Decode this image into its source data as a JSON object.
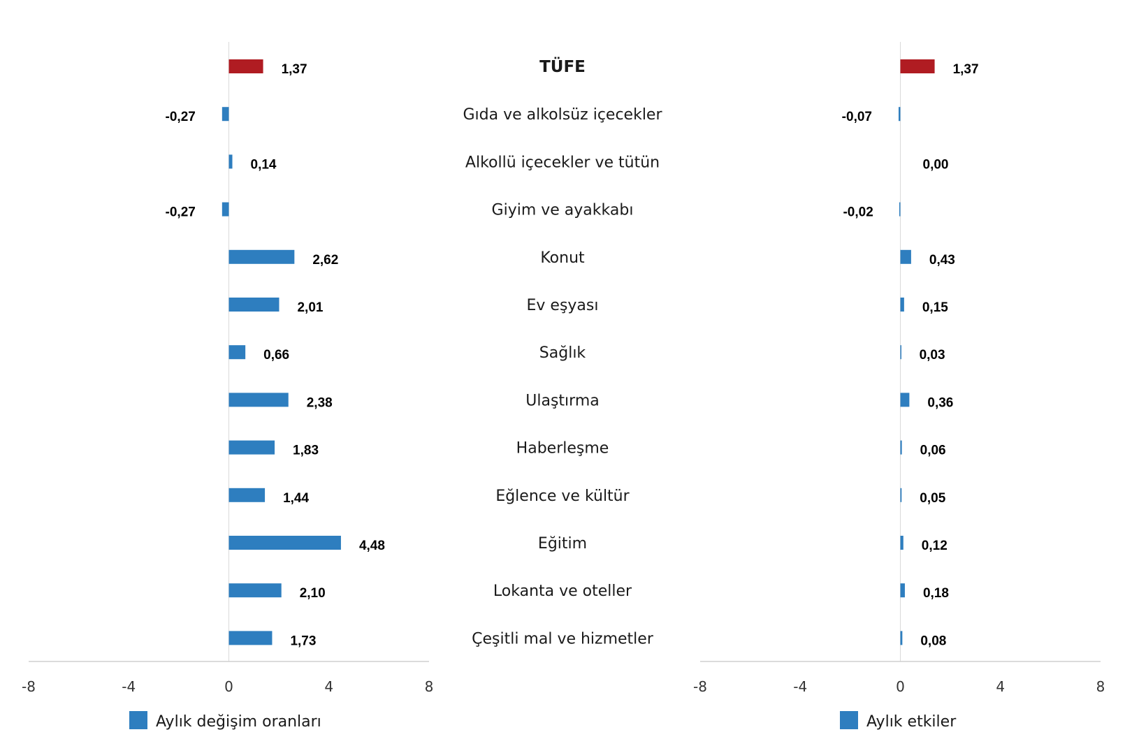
{
  "chart_data": [
    {
      "type": "bar",
      "orientation": "horizontal",
      "categories": [
        "TÜFE",
        "Gıda ve alkolsüz içecekler",
        "Alkollü içecekler ve tütün",
        "Giyim ve ayakkabı",
        "Konut",
        "Ev eşyası",
        "Sağlık",
        "Ulaştırma",
        "Haberleşme",
        "Eğlence ve kültür",
        "Eğitim",
        "Lokanta ve oteller",
        "Çeşitli mal ve hizmetler"
      ],
      "series": [
        {
          "name": "Aylık değişim oranları",
          "values": [
            1.37,
            -0.27,
            0.14,
            -0.27,
            2.62,
            2.01,
            0.66,
            2.38,
            1.83,
            1.44,
            4.48,
            2.1,
            1.73
          ],
          "labels": [
            "1,37",
            "-0,27",
            "0,14",
            "-0,27",
            "2,62",
            "2,01",
            "0,66",
            "2,38",
            "1,83",
            "1,44",
            "4,48",
            "2,10",
            "1,73"
          ]
        }
      ],
      "highlight_index": 0,
      "colors": {
        "bar": "#2e7ebf",
        "highlight": "#b01c22"
      },
      "xlim": [
        -8,
        8
      ],
      "xticks": [
        "-8",
        "-4",
        "0",
        "4",
        "8"
      ],
      "xlabel": "",
      "ylabel": "",
      "title": "",
      "legend": "bottom"
    },
    {
      "type": "bar",
      "orientation": "horizontal",
      "categories": [
        "TÜFE",
        "Gıda ve alkolsüz içecekler",
        "Alkollü içecekler ve tütün",
        "Giyim ve ayakkabı",
        "Konut",
        "Ev eşyası",
        "Sağlık",
        "Ulaştırma",
        "Haberleşme",
        "Eğlence ve kültür",
        "Eğitim",
        "Lokanta ve oteller",
        "Çeşitli mal ve hizmetler"
      ],
      "series": [
        {
          "name": "Aylık etkiler",
          "values": [
            1.37,
            -0.07,
            0.0,
            -0.02,
            0.43,
            0.15,
            0.03,
            0.36,
            0.06,
            0.05,
            0.12,
            0.18,
            0.08
          ],
          "labels": [
            "1,37",
            "-0,07",
            "0,00",
            "-0,02",
            "0,43",
            "0,15",
            "0,03",
            "0,36",
            "0,06",
            "0,05",
            "0,12",
            "0,18",
            "0,08"
          ]
        }
      ],
      "highlight_index": 0,
      "colors": {
        "bar": "#2e7ebf",
        "highlight": "#b01c22"
      },
      "xlim": [
        -8,
        8
      ],
      "xticks": [
        "-8",
        "-4",
        "0",
        "4",
        "8"
      ],
      "xlabel": "",
      "ylabel": "",
      "title": "",
      "legend": "bottom"
    }
  ]
}
